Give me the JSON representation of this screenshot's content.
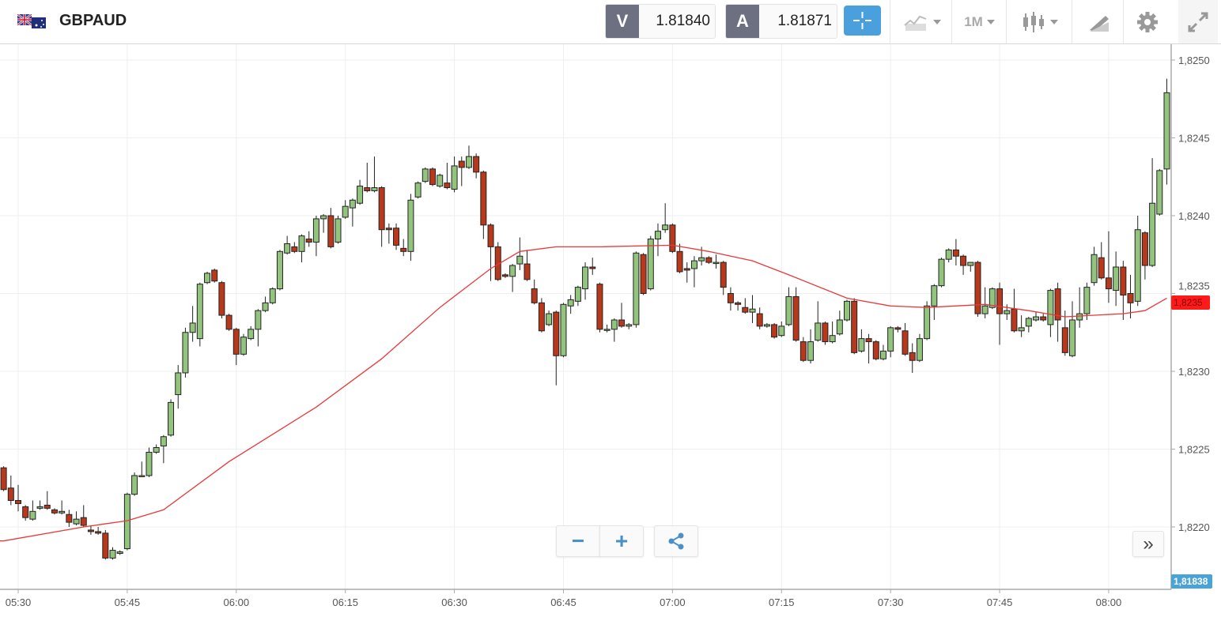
{
  "header": {
    "symbol": "GBPAUD",
    "bid_letter": "V",
    "bid_value": "1.81840",
    "ask_letter": "A",
    "ask_value": "1.81871",
    "timeframe": "1M",
    "icons": [
      "flag-gb-au-icon",
      "crosshair-icon",
      "line-chart-icon",
      "candlestick-icon",
      "drawing-tools-icon",
      "gear-icon",
      "expand-icon"
    ]
  },
  "price_tags": {
    "indicator": "1,8235",
    "current": "1,81838"
  },
  "controls": {
    "zoom_out": "−",
    "zoom_in": "+",
    "scroll_right": "»"
  },
  "colors": {
    "up": "#93c47d",
    "down": "#b8381c",
    "ma": "#e8383a",
    "crosshair": "#4aa0dc",
    "current_tag": "#4aa3d8",
    "indicator_tag": "#ff1a1a"
  },
  "chart_data": {
    "type": "candlestick",
    "symbol": "GBPAUD",
    "interval": "1 minute",
    "start_time": "05:28",
    "ylim": [
      1.8216,
      1.8251
    ],
    "y_ticks": [
      {
        "v": 1.825,
        "label": "1,8250"
      },
      {
        "v": 1.8245,
        "label": "1,8245"
      },
      {
        "v": 1.824,
        "label": "1,8240"
      },
      {
        "v": 1.8235,
        "label": "1,8235"
      },
      {
        "v": 1.823,
        "label": "1,8230"
      },
      {
        "v": 1.8225,
        "label": "1,8225"
      },
      {
        "v": 1.822,
        "label": "1,8220"
      }
    ],
    "x_ticks": [
      "05:30",
      "05:45",
      "06:00",
      "06:15",
      "06:30",
      "06:45",
      "07:00",
      "07:15",
      "07:30",
      "07:45",
      "08:00"
    ],
    "grid": true,
    "candles_ohlc": [
      [
        1.82238,
        1.82239,
        1.82223,
        1.82224
      ],
      [
        1.82225,
        1.82233,
        1.82214,
        1.82217
      ],
      [
        1.82217,
        1.82227,
        1.8221,
        1.82215
      ],
      [
        1.82213,
        1.82214,
        1.82204,
        1.82206
      ],
      [
        1.82205,
        1.82217,
        1.82204,
        1.8221
      ],
      [
        1.82212,
        1.82217,
        1.82211,
        1.82213
      ],
      [
        1.82214,
        1.82223,
        1.82211,
        1.82212
      ],
      [
        1.82211,
        1.82212,
        1.82208,
        1.82209
      ],
      [
        1.82209,
        1.82217,
        1.82208,
        1.8221
      ],
      [
        1.82208,
        1.82211,
        1.822,
        1.82203
      ],
      [
        1.82202,
        1.8221,
        1.82201,
        1.82205
      ],
      [
        1.82206,
        1.82214,
        1.822,
        1.82201
      ],
      [
        1.82198,
        1.82201,
        1.82195,
        1.82197
      ],
      [
        1.82197,
        1.822,
        1.82195,
        1.82196
      ],
      [
        1.82196,
        1.82198,
        1.82179,
        1.8218
      ],
      [
        1.8218,
        1.82187,
        1.82179,
        1.82185
      ],
      [
        1.82183,
        1.82185,
        1.82182,
        1.82184
      ],
      [
        1.82186,
        1.82222,
        1.82185,
        1.82221
      ],
      [
        1.82221,
        1.82235,
        1.8222,
        1.82233
      ],
      [
        1.82233,
        1.82242,
        1.82232,
        1.82233
      ],
      [
        1.82233,
        1.82251,
        1.82232,
        1.82248
      ],
      [
        1.82248,
        1.82253,
        1.82247,
        1.82251
      ],
      [
        1.82252,
        1.82259,
        1.82241,
        1.82258
      ],
      [
        1.82259,
        1.82282,
        1.82258,
        1.8228
      ],
      [
        1.82285,
        1.82304,
        1.82276,
        1.82299
      ],
      [
        1.82299,
        1.82328,
        1.82296,
        1.82325
      ],
      [
        1.82325,
        1.82342,
        1.82319,
        1.82331
      ],
      [
        1.82321,
        1.82357,
        1.82316,
        1.82356
      ],
      [
        1.82357,
        1.82364,
        1.82356,
        1.82363
      ],
      [
        1.82365,
        1.82366,
        1.82357,
        1.82358
      ],
      [
        1.82357,
        1.82358,
        1.82334,
        1.82336
      ],
      [
        1.82336,
        1.82337,
        1.82326,
        1.82327
      ],
      [
        1.82327,
        1.82328,
        1.82304,
        1.82311
      ],
      [
        1.82311,
        1.82324,
        1.8231,
        1.82322
      ],
      [
        1.82321,
        1.82329,
        1.8232,
        1.82327
      ],
      [
        1.82327,
        1.8234,
        1.82316,
        1.82339
      ],
      [
        1.82339,
        1.82348,
        1.82338,
        1.82344
      ],
      [
        1.82344,
        1.82354,
        1.82343,
        1.82353
      ],
      [
        1.82353,
        1.82378,
        1.82352,
        1.82377
      ],
      [
        1.82376,
        1.82387,
        1.82375,
        1.82382
      ],
      [
        1.8238,
        1.82383,
        1.82376,
        1.82377
      ],
      [
        1.82377,
        1.82388,
        1.8237,
        1.82387
      ],
      [
        1.82385,
        1.8239,
        1.8238,
        1.82383
      ],
      [
        1.82383,
        1.824,
        1.82374,
        1.82398
      ],
      [
        1.82398,
        1.82401,
        1.82389,
        1.824
      ],
      [
        1.824,
        1.82405,
        1.82379,
        1.8238
      ],
      [
        1.82383,
        1.824,
        1.82382,
        1.82398
      ],
      [
        1.82399,
        1.8241,
        1.82398,
        1.82406
      ],
      [
        1.82405,
        1.82411,
        1.82393,
        1.8241
      ],
      [
        1.82408,
        1.82423,
        1.82407,
        1.82419
      ],
      [
        1.82418,
        1.82434,
        1.82415,
        1.82416
      ],
      [
        1.82416,
        1.82438,
        1.82415,
        1.82418
      ],
      [
        1.82418,
        1.82419,
        1.8238,
        1.82391
      ],
      [
        1.82392,
        1.82395,
        1.82382,
        1.82391
      ],
      [
        1.82392,
        1.82395,
        1.82378,
        1.82381
      ],
      [
        1.82379,
        1.82385,
        1.82374,
        1.82377
      ],
      [
        1.82377,
        1.82414,
        1.82371,
        1.8241
      ],
      [
        1.82412,
        1.82422,
        1.82411,
        1.82421
      ],
      [
        1.82422,
        1.82431,
        1.82421,
        1.8243
      ],
      [
        1.8243,
        1.82431,
        1.82419,
        1.8242
      ],
      [
        1.82419,
        1.82427,
        1.82418,
        1.82426
      ],
      [
        1.82421,
        1.82434,
        1.82417,
        1.82418
      ],
      [
        1.82417,
        1.82438,
        1.82415,
        1.82432
      ],
      [
        1.82435,
        1.82438,
        1.82419,
        1.82431
      ],
      [
        1.82431,
        1.82445,
        1.8243,
        1.82438
      ],
      [
        1.82438,
        1.8244,
        1.82424,
        1.82428
      ],
      [
        1.82428,
        1.82429,
        1.82385,
        1.82394
      ],
      [
        1.82394,
        1.82395,
        1.82358,
        1.8238
      ],
      [
        1.8238,
        1.82383,
        1.82358,
        1.82359
      ],
      [
        1.82362,
        1.82363,
        1.8236,
        1.82361
      ],
      [
        1.82361,
        1.82369,
        1.82351,
        1.82368
      ],
      [
        1.82369,
        1.82386,
        1.82365,
        1.82374
      ],
      [
        1.82369,
        1.82378,
        1.82358,
        1.82359
      ],
      [
        1.82353,
        1.82359,
        1.82343,
        1.82344
      ],
      [
        1.82344,
        1.82347,
        1.82325,
        1.82326
      ],
      [
        1.8233,
        1.82339,
        1.82329,
        1.82337
      ],
      [
        1.82338,
        1.82339,
        1.82291,
        1.8231
      ],
      [
        1.8231,
        1.82344,
        1.82309,
        1.82343
      ],
      [
        1.82342,
        1.82349,
        1.82337,
        1.82346
      ],
      [
        1.82345,
        1.82355,
        1.82342,
        1.82354
      ],
      [
        1.82353,
        1.8237,
        1.82346,
        1.82367
      ],
      [
        1.82367,
        1.82373,
        1.82362,
        1.82366
      ],
      [
        1.82356,
        1.82357,
        1.82325,
        1.82327
      ],
      [
        1.82327,
        1.8233,
        1.82325,
        1.82327
      ],
      [
        1.82327,
        1.82334,
        1.82319,
        1.82333
      ],
      [
        1.82333,
        1.82344,
        1.82328,
        1.82329
      ],
      [
        1.82329,
        1.82331,
        1.82327,
        1.8233
      ],
      [
        1.8233,
        1.82377,
        1.82328,
        1.82376
      ],
      [
        1.82375,
        1.82376,
        1.82349,
        1.8235
      ],
      [
        1.82353,
        1.82387,
        1.82352,
        1.82385
      ],
      [
        1.82385,
        1.82395,
        1.82374,
        1.8239
      ],
      [
        1.82391,
        1.82408,
        1.82389,
        1.82394
      ],
      [
        1.82394,
        1.82395,
        1.82376,
        1.82377
      ],
      [
        1.82377,
        1.82382,
        1.82363,
        1.82364
      ],
      [
        1.82366,
        1.8237,
        1.82357,
        1.82365
      ],
      [
        1.82366,
        1.82374,
        1.82354,
        1.82371
      ],
      [
        1.82371,
        1.8238,
        1.82368,
        1.82373
      ],
      [
        1.82373,
        1.82374,
        1.82369,
        1.8237
      ],
      [
        1.8237,
        1.82375,
        1.82366,
        1.8237
      ],
      [
        1.8237,
        1.82371,
        1.82349,
        1.82354
      ],
      [
        1.8235,
        1.82354,
        1.82339,
        1.82344
      ],
      [
        1.82344,
        1.82345,
        1.82339,
        1.82343
      ],
      [
        1.82341,
        1.82347,
        1.82337,
        1.82338
      ],
      [
        1.82338,
        1.82349,
        1.82331,
        1.8234
      ],
      [
        1.82337,
        1.82341,
        1.82327,
        1.82329
      ],
      [
        1.82329,
        1.82331,
        1.82328,
        1.8233
      ],
      [
        1.8233,
        1.82331,
        1.82321,
        1.82322
      ],
      [
        1.82323,
        1.82332,
        1.82322,
        1.82329
      ],
      [
        1.8233,
        1.82354,
        1.82329,
        1.82348
      ],
      [
        1.82348,
        1.82354,
        1.82319,
        1.8232
      ],
      [
        1.82319,
        1.82322,
        1.82306,
        1.82307
      ],
      [
        1.82307,
        1.82327,
        1.82305,
        1.82319
      ],
      [
        1.8232,
        1.82345,
        1.82319,
        1.82331
      ],
      [
        1.82331,
        1.82332,
        1.82317,
        1.82319
      ],
      [
        1.82319,
        1.82332,
        1.82318,
        1.82323
      ],
      [
        1.82324,
        1.82339,
        1.82323,
        1.82333
      ],
      [
        1.82333,
        1.82346,
        1.82332,
        1.82345
      ],
      [
        1.82345,
        1.82347,
        1.82311,
        1.82312
      ],
      [
        1.82313,
        1.82327,
        1.82312,
        1.82321
      ],
      [
        1.82321,
        1.82324,
        1.82305,
        1.82319
      ],
      [
        1.82319,
        1.8232,
        1.82307,
        1.82308
      ],
      [
        1.82308,
        1.82317,
        1.82307,
        1.82313
      ],
      [
        1.82313,
        1.82329,
        1.82309,
        1.82328
      ],
      [
        1.82328,
        1.82329,
        1.82325,
        1.82327
      ],
      [
        1.82326,
        1.82331,
        1.8231,
        1.82311
      ],
      [
        1.82312,
        1.82318,
        1.82299,
        1.82307
      ],
      [
        1.82307,
        1.82324,
        1.82306,
        1.82321
      ],
      [
        1.82321,
        1.82345,
        1.8232,
        1.82342
      ],
      [
        1.82342,
        1.82356,
        1.82333,
        1.82355
      ],
      [
        1.82355,
        1.82373,
        1.82354,
        1.82372
      ],
      [
        1.82372,
        1.82379,
        1.8237,
        1.82378
      ],
      [
        1.82378,
        1.82385,
        1.82368,
        1.82374
      ],
      [
        1.82374,
        1.82375,
        1.82362,
        1.82368
      ],
      [
        1.82368,
        1.8237,
        1.82364,
        1.8237
      ],
      [
        1.8237,
        1.82371,
        1.82335,
        1.82337
      ],
      [
        1.82337,
        1.82354,
        1.82334,
        1.82342
      ],
      [
        1.82341,
        1.82354,
        1.8234,
        1.82353
      ],
      [
        1.82353,
        1.82357,
        1.82317,
        1.82337
      ],
      [
        1.82337,
        1.82343,
        1.82333,
        1.82339
      ],
      [
        1.8234,
        1.82353,
        1.82325,
        1.82326
      ],
      [
        1.82326,
        1.82336,
        1.82322,
        1.82328
      ],
      [
        1.82329,
        1.82335,
        1.82325,
        1.82334
      ],
      [
        1.82333,
        1.82338,
        1.82332,
        1.82335
      ],
      [
        1.82335,
        1.82337,
        1.82332,
        1.82333
      ],
      [
        1.8233,
        1.82353,
        1.82322,
        1.82352
      ],
      [
        1.82353,
        1.82357,
        1.82319,
        1.82333
      ],
      [
        1.82328,
        1.82339,
        1.8231,
        1.82312
      ],
      [
        1.8231,
        1.82345,
        1.82309,
        1.82333
      ],
      [
        1.82333,
        1.82354,
        1.82328,
        1.82337
      ],
      [
        1.82337,
        1.82357,
        1.82333,
        1.82354
      ],
      [
        1.82357,
        1.8238,
        1.82355,
        1.82375
      ],
      [
        1.82373,
        1.82383,
        1.82359,
        1.8236
      ],
      [
        1.8236,
        1.8239,
        1.82344,
        1.82353
      ],
      [
        1.82352,
        1.82377,
        1.82342,
        1.82367
      ],
      [
        1.82367,
        1.82371,
        1.82333,
        1.82349
      ],
      [
        1.8235,
        1.82362,
        1.82334,
        1.82344
      ],
      [
        1.82345,
        1.824,
        1.82342,
        1.82391
      ],
      [
        1.82389,
        1.8239,
        1.82359,
        1.82368
      ],
      [
        1.82368,
        1.82437,
        1.82367,
        1.82408
      ],
      [
        1.82401,
        1.8243,
        1.824,
        1.82429
      ],
      [
        1.8243,
        1.82488,
        1.8242,
        1.82479
      ]
    ],
    "moving_average": [
      {
        "t": "05:28",
        "v": 1.82191
      },
      {
        "t": "05:39",
        "v": 1.822
      },
      {
        "t": "05:45",
        "v": 1.82204
      },
      {
        "t": "05:50",
        "v": 1.82211
      },
      {
        "t": "05:59",
        "v": 1.82242
      },
      {
        "t": "06:11",
        "v": 1.82277
      },
      {
        "t": "06:20",
        "v": 1.82308
      },
      {
        "t": "06:28",
        "v": 1.82341
      },
      {
        "t": "06:35",
        "v": 1.82366
      },
      {
        "t": "06:39",
        "v": 1.82377
      },
      {
        "t": "06:44",
        "v": 1.8238
      },
      {
        "t": "06:50",
        "v": 1.8238
      },
      {
        "t": "07:00",
        "v": 1.82381
      },
      {
        "t": "07:05",
        "v": 1.82377
      },
      {
        "t": "07:11",
        "v": 1.82371
      },
      {
        "t": "07:16",
        "v": 1.82362
      },
      {
        "t": "07:24",
        "v": 1.82347
      },
      {
        "t": "07:30",
        "v": 1.82342
      },
      {
        "t": "07:35",
        "v": 1.82341
      },
      {
        "t": "07:43",
        "v": 1.82343
      },
      {
        "t": "07:49",
        "v": 1.82339
      },
      {
        "t": "07:54",
        "v": 1.82335
      },
      {
        "t": "08:02",
        "v": 1.82337
      },
      {
        "t": "08:05",
        "v": 1.82339
      },
      {
        "t": "08:08",
        "v": 1.82347
      }
    ]
  }
}
